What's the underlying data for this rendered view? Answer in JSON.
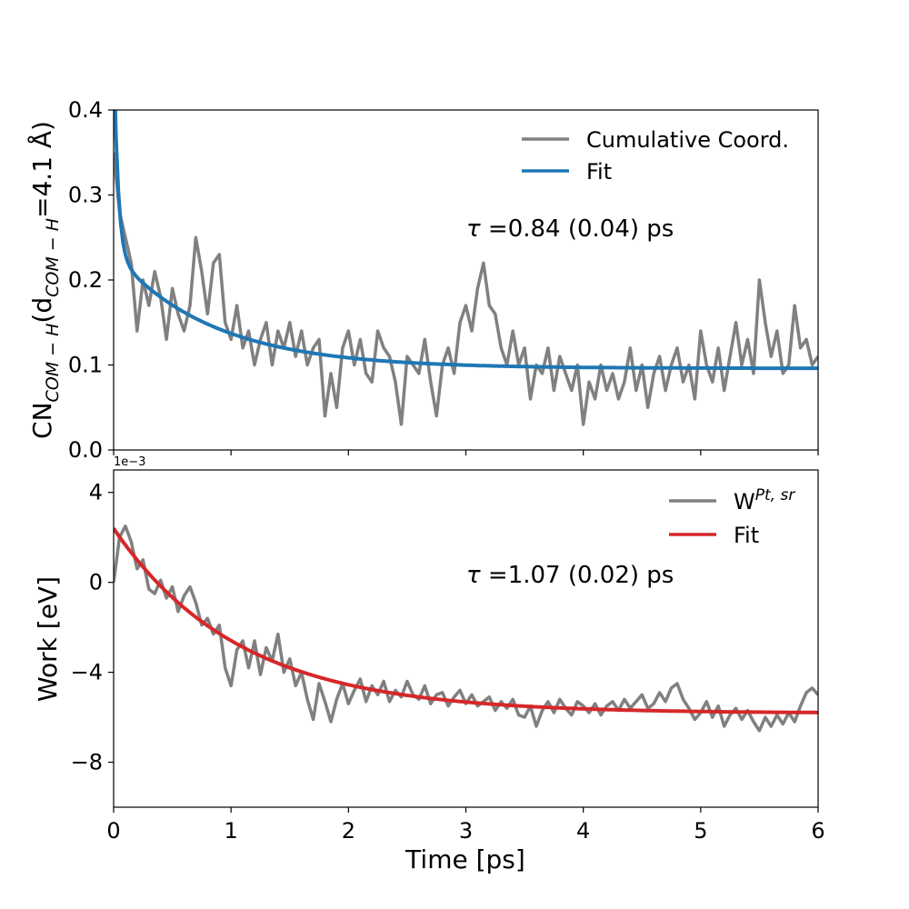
{
  "chart_data": [
    {
      "type": "line",
      "panel": "top",
      "ylabel_main": "CN",
      "ylabel_sub1": "COM − H",
      "ylabel_open": "(d",
      "ylabel_sub2": "COM − H",
      "ylabel_close": "=4.1 Å)",
      "xlim": [
        0,
        6
      ],
      "ylim": [
        0,
        0.4
      ],
      "yticks": [
        0.0,
        0.1,
        0.2,
        0.3,
        0.4
      ],
      "ytick_labels": [
        "0.0",
        "0.1",
        "0.2",
        "0.3",
        "0.4"
      ],
      "xticks": [
        0,
        1,
        2,
        3,
        4,
        5,
        6
      ],
      "legend_position": "upper-right",
      "annotation": {
        "symbol": "τ",
        "text": " =0.84 (0.04) ps"
      },
      "series": [
        {
          "name": "Cumulative Coord.",
          "color": "#808080",
          "x": [
            0.0,
            0.05,
            0.1,
            0.15,
            0.2,
            0.25,
            0.3,
            0.35,
            0.4,
            0.45,
            0.5,
            0.55,
            0.6,
            0.65,
            0.7,
            0.75,
            0.8,
            0.85,
            0.9,
            0.95,
            1.0,
            1.05,
            1.1,
            1.15,
            1.2,
            1.25,
            1.3,
            1.35,
            1.4,
            1.45,
            1.5,
            1.55,
            1.6,
            1.65,
            1.7,
            1.75,
            1.8,
            1.85,
            1.9,
            1.95,
            2.0,
            2.05,
            2.1,
            2.15,
            2.2,
            2.25,
            2.3,
            2.35,
            2.4,
            2.45,
            2.5,
            2.55,
            2.6,
            2.65,
            2.7,
            2.75,
            2.8,
            2.85,
            2.9,
            2.95,
            3.0,
            3.05,
            3.1,
            3.15,
            3.2,
            3.25,
            3.3,
            3.35,
            3.4,
            3.45,
            3.5,
            3.55,
            3.6,
            3.65,
            3.7,
            3.75,
            3.8,
            3.85,
            3.9,
            3.95,
            4.0,
            4.05,
            4.1,
            4.15,
            4.2,
            4.25,
            4.3,
            4.35,
            4.4,
            4.45,
            4.5,
            4.55,
            4.6,
            4.65,
            4.7,
            4.75,
            4.8,
            4.85,
            4.9,
            4.95,
            5.0,
            5.05,
            5.1,
            5.15,
            5.2,
            5.25,
            5.3,
            5.35,
            5.4,
            5.45,
            5.5,
            5.55,
            5.6,
            5.65,
            5.7,
            5.75,
            5.8,
            5.85,
            5.9,
            5.95,
            6.0
          ],
          "y": [
            0.35,
            0.28,
            0.25,
            0.22,
            0.14,
            0.2,
            0.17,
            0.21,
            0.18,
            0.13,
            0.19,
            0.16,
            0.14,
            0.17,
            0.25,
            0.21,
            0.16,
            0.22,
            0.23,
            0.15,
            0.13,
            0.17,
            0.12,
            0.14,
            0.1,
            0.13,
            0.15,
            0.1,
            0.14,
            0.12,
            0.15,
            0.11,
            0.14,
            0.1,
            0.12,
            0.13,
            0.04,
            0.09,
            0.05,
            0.12,
            0.14,
            0.1,
            0.13,
            0.09,
            0.08,
            0.14,
            0.12,
            0.11,
            0.08,
            0.03,
            0.11,
            0.1,
            0.09,
            0.13,
            0.08,
            0.04,
            0.1,
            0.12,
            0.09,
            0.15,
            0.17,
            0.14,
            0.19,
            0.22,
            0.17,
            0.16,
            0.12,
            0.1,
            0.14,
            0.1,
            0.12,
            0.06,
            0.1,
            0.09,
            0.12,
            0.07,
            0.11,
            0.09,
            0.07,
            0.1,
            0.03,
            0.08,
            0.06,
            0.1,
            0.07,
            0.09,
            0.06,
            0.08,
            0.12,
            0.07,
            0.1,
            0.05,
            0.09,
            0.11,
            0.07,
            0.1,
            0.12,
            0.08,
            0.1,
            0.06,
            0.14,
            0.1,
            0.08,
            0.12,
            0.07,
            0.11,
            0.15,
            0.1,
            0.13,
            0.09,
            0.2,
            0.15,
            0.11,
            0.14,
            0.09,
            0.1,
            0.17,
            0.12,
            0.13,
            0.1,
            0.11
          ]
        },
        {
          "name": "Fit",
          "color": "#1f77b4",
          "function": "exp_decay",
          "params": {
            "tau": 0.84,
            "y0": 0.096,
            "A": 0.135,
            "fast": {
              "amp": 0.25,
              "tau": 0.035
            }
          },
          "x_range": [
            0,
            6
          ]
        }
      ]
    },
    {
      "type": "line",
      "panel": "bottom",
      "ylabel": "Work [eV]",
      "xlabel": "Time [ps]",
      "offset_text": "1e−3",
      "xlim": [
        0,
        6
      ],
      "ylim": [
        -10,
        5
      ],
      "yticks": [
        4,
        0,
        -4,
        -8
      ],
      "ytick_labels": [
        "4",
        "0",
        "−4",
        "−8"
      ],
      "xticks": [
        0,
        1,
        2,
        3,
        4,
        5,
        6
      ],
      "xtick_labels": [
        "0",
        "1",
        "2",
        "3",
        "4",
        "5",
        "6"
      ],
      "legend_position": "upper-right",
      "annotation": {
        "symbol": "τ",
        "text": " =1.07 (0.02) ps"
      },
      "series": [
        {
          "name": "W",
          "name_sup": "Pt, sr",
          "color": "#808080",
          "x": [
            0.0,
            0.05,
            0.1,
            0.15,
            0.2,
            0.25,
            0.3,
            0.35,
            0.4,
            0.45,
            0.5,
            0.55,
            0.6,
            0.65,
            0.7,
            0.75,
            0.8,
            0.85,
            0.9,
            0.95,
            1.0,
            1.05,
            1.1,
            1.15,
            1.2,
            1.25,
            1.3,
            1.35,
            1.4,
            1.45,
            1.5,
            1.55,
            1.6,
            1.65,
            1.7,
            1.75,
            1.8,
            1.85,
            1.9,
            1.95,
            2.0,
            2.05,
            2.1,
            2.15,
            2.2,
            2.25,
            2.3,
            2.35,
            2.4,
            2.45,
            2.5,
            2.55,
            2.6,
            2.65,
            2.7,
            2.75,
            2.8,
            2.85,
            2.9,
            2.95,
            3.0,
            3.05,
            3.1,
            3.15,
            3.2,
            3.25,
            3.3,
            3.35,
            3.4,
            3.45,
            3.5,
            3.55,
            3.6,
            3.65,
            3.7,
            3.75,
            3.8,
            3.85,
            3.9,
            3.95,
            4.0,
            4.05,
            4.1,
            4.15,
            4.2,
            4.25,
            4.3,
            4.35,
            4.4,
            4.45,
            4.5,
            4.55,
            4.6,
            4.65,
            4.7,
            4.75,
            4.8,
            4.85,
            4.9,
            4.95,
            5.0,
            5.05,
            5.1,
            5.15,
            5.2,
            5.25,
            5.3,
            5.35,
            5.4,
            5.45,
            5.5,
            5.55,
            5.6,
            5.65,
            5.7,
            5.75,
            5.8,
            5.85,
            5.9,
            5.95,
            6.0
          ],
          "y": [
            0.0,
            2.0,
            2.5,
            1.8,
            0.6,
            1.0,
            -0.3,
            -0.5,
            0.1,
            -0.7,
            -0.2,
            -1.3,
            -0.6,
            -0.2,
            -0.9,
            -1.9,
            -1.6,
            -2.3,
            -1.9,
            -3.8,
            -4.6,
            -3.0,
            -2.6,
            -3.8,
            -2.6,
            -4.1,
            -2.9,
            -3.5,
            -2.3,
            -4.0,
            -3.4,
            -4.6,
            -4.0,
            -5.2,
            -6.1,
            -4.5,
            -5.3,
            -6.2,
            -5.2,
            -4.5,
            -5.4,
            -4.8,
            -4.3,
            -5.3,
            -4.6,
            -5.0,
            -4.4,
            -5.3,
            -4.8,
            -5.1,
            -4.4,
            -5.0,
            -5.2,
            -4.6,
            -5.4,
            -5.0,
            -4.9,
            -5.5,
            -5.1,
            -4.8,
            -5.4,
            -5.0,
            -5.5,
            -5.3,
            -5.1,
            -5.7,
            -5.3,
            -5.6,
            -5.2,
            -5.9,
            -6.0,
            -5.5,
            -6.4,
            -5.7,
            -5.3,
            -5.8,
            -5.2,
            -5.6,
            -5.9,
            -5.3,
            -5.5,
            -5.8,
            -5.4,
            -5.9,
            -5.5,
            -5.3,
            -5.7,
            -5.2,
            -5.6,
            -5.3,
            -5.0,
            -5.6,
            -5.4,
            -4.9,
            -5.3,
            -4.7,
            -4.5,
            -5.2,
            -5.6,
            -6.1,
            -5.8,
            -5.3,
            -6.0,
            -5.5,
            -6.4,
            -5.9,
            -5.6,
            -6.1,
            -5.7,
            -6.2,
            -6.6,
            -6.0,
            -6.4,
            -5.9,
            -6.3,
            -5.8,
            -6.2,
            -5.5,
            -4.9,
            -4.7,
            -5.0
          ]
        },
        {
          "name": "Fit",
          "color": "#d62728",
          "function": "exp_decay",
          "params": {
            "tau": 1.07,
            "y0": -5.82,
            "A": 8.22
          },
          "x_range": [
            0,
            6
          ]
        }
      ]
    }
  ]
}
